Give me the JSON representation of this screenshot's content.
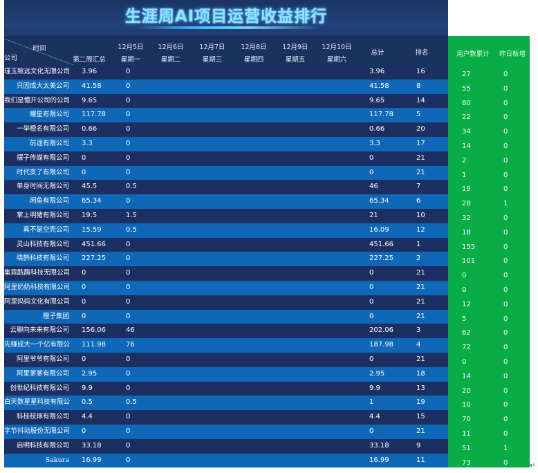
{
  "title": "生涯周AI项目运营收益排行",
  "header": {
    "diag_top": "时间",
    "diag_bottom": "公司",
    "week2": "第二周汇总",
    "days": [
      {
        "date": "12月5日",
        "weekday": "星期一"
      },
      {
        "date": "12月6日",
        "weekday": "星期二"
      },
      {
        "date": "12月7日",
        "weekday": "星期三"
      },
      {
        "date": "12月8日",
        "weekday": "星期四"
      },
      {
        "date": "12月9日",
        "weekday": "星期五"
      },
      {
        "date": "12月10日",
        "weekday": "星期六"
      }
    ],
    "total": "总计",
    "rank": "排名",
    "user_total": "用户数累计",
    "yesterday_new": "昨日新增"
  },
  "rows": [
    {
      "company": "瑾玉致远文化无限公司",
      "week2": "3.96",
      "mon": "0",
      "total": "3.96",
      "rank": "16",
      "users": "27",
      "new": "0"
    },
    {
      "company": "只因成大太美公司",
      "week2": "41.58",
      "mon": "0",
      "total": "41.58",
      "rank": "8",
      "users": "55",
      "new": "0"
    },
    {
      "company": "我们是懂开公司的公司",
      "week2": "9.65",
      "mon": "0",
      "total": "9.65",
      "rank": "14",
      "users": "80",
      "new": "0"
    },
    {
      "company": "耀星有限公司",
      "week2": "117.78",
      "mon": "0",
      "total": "117.78",
      "rank": "5",
      "users": "22",
      "new": "0"
    },
    {
      "company": "一举橙名有限公司",
      "week2": "0.66",
      "mon": "0",
      "total": "0.66",
      "rank": "20",
      "users": "34",
      "new": "0"
    },
    {
      "company": "前途有限公司",
      "week2": "3.3",
      "mon": "0",
      "total": "3.3",
      "rank": "17",
      "users": "14",
      "new": "0"
    },
    {
      "company": "摆子传媒有限公司",
      "week2": "0",
      "mon": "0",
      "total": "0",
      "rank": "21",
      "users": "2",
      "new": "0"
    },
    {
      "company": "时代变了有限公司",
      "week2": "0",
      "mon": "0",
      "total": "0",
      "rank": "21",
      "users": "1",
      "new": "0"
    },
    {
      "company": "单身时间无限公司",
      "week2": "45.5",
      "mon": "0.5",
      "total": "46",
      "rank": "7",
      "users": "19",
      "new": "0"
    },
    {
      "company": "闲鱼有限公司",
      "week2": "65.34",
      "mon": "0",
      "total": "65.34",
      "rank": "6",
      "users": "28",
      "new": "1"
    },
    {
      "company": "掌上明猪有限公司",
      "week2": "19.5",
      "mon": "1.5",
      "total": "21",
      "rank": "10",
      "users": "32",
      "new": "0"
    },
    {
      "company": "真不是空壳公司",
      "week2": "15.59",
      "mon": "0.5",
      "total": "16.09",
      "rank": "12",
      "users": "18",
      "new": "0"
    },
    {
      "company": "灵山科技有限公司",
      "week2": "451.66",
      "mon": "0",
      "total": "451.66",
      "rank": "1",
      "users": "155",
      "new": "0"
    },
    {
      "company": "晓鹊科技有限公司",
      "week2": "227.25",
      "mon": "0",
      "total": "227.25",
      "rank": "2",
      "users": "101",
      "new": "0"
    },
    {
      "company": "集霓酰酶科技无限公司",
      "week2": "0",
      "mon": "0",
      "total": "0",
      "rank": "21",
      "users": "0",
      "new": "0"
    },
    {
      "company": "阿里奶奶科技有限公司",
      "week2": "0",
      "mon": "0",
      "total": "0",
      "rank": "21",
      "users": "0",
      "new": "0"
    },
    {
      "company": "阿里妈妈文化有限公司",
      "week2": "0",
      "mon": "0",
      "total": "0",
      "rank": "21",
      "users": "12",
      "new": "0"
    },
    {
      "company": "橙子集团",
      "week2": "0",
      "mon": "0",
      "total": "0",
      "rank": "21",
      "users": "5",
      "new": "0"
    },
    {
      "company": "云聊向未来有限公司",
      "week2": "156.06",
      "mon": "46",
      "total": "202.06",
      "rank": "3",
      "users": "62",
      "new": "0"
    },
    {
      "company": "先赚成大一个亿有限公司",
      "week2": "111.98",
      "mon": "76",
      "total": "187.98",
      "rank": "4",
      "users": "72",
      "new": "0"
    },
    {
      "company": "阿里爷爷有限公司",
      "week2": "0",
      "mon": "0",
      "total": "0",
      "rank": "21",
      "users": "0",
      "new": "0"
    },
    {
      "company": "阿里爹爹有限公司",
      "week2": "2.95",
      "mon": "0",
      "total": "2.95",
      "rank": "18",
      "users": "14",
      "new": "0"
    },
    {
      "company": "创世纪科技有限公司",
      "week2": "9.9",
      "mon": "0",
      "total": "9.9",
      "rank": "13",
      "users": "20",
      "new": "0"
    },
    {
      "company": "白天数星星科技有限公司",
      "week2": "0.5",
      "mon": "0.5",
      "total": "1",
      "rank": "19",
      "users": "10",
      "new": "0"
    },
    {
      "company": "科桂枝琢有限公司",
      "week2": "4.4",
      "mon": "0",
      "total": "4.4",
      "rank": "15",
      "users": "70",
      "new": "0"
    },
    {
      "company": "字节抖动股份无限公司",
      "week2": "0",
      "mon": "0",
      "total": "0",
      "rank": "21",
      "users": "11",
      "new": "0"
    },
    {
      "company": "启明科技有限公司",
      "week2": "33.18",
      "mon": "0",
      "total": "33.18",
      "rank": "9",
      "users": "51",
      "new": "1"
    },
    {
      "company": "Sakura",
      "week2": "16.99",
      "mon": "0",
      "total": "16.99",
      "rank": "11",
      "users": "73",
      "new": "0"
    }
  ],
  "return_mark": "↵"
}
